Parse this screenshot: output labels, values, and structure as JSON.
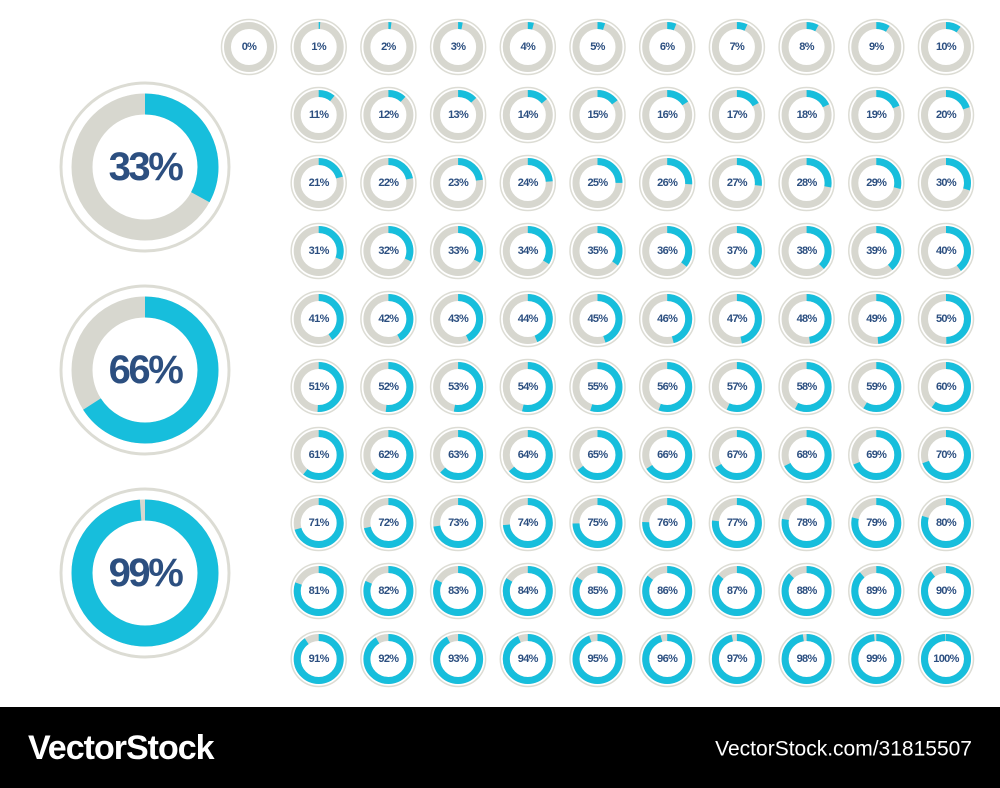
{
  "arc_color": "#17bedc",
  "track_color": "#d7d7cf",
  "text_color": "#2c4f80",
  "big": [
    {
      "value": 33,
      "label": "33%"
    },
    {
      "value": 66,
      "label": "66%"
    },
    {
      "value": 99,
      "label": "99%"
    }
  ],
  "small": [
    {
      "value": 0,
      "label": "0%"
    },
    {
      "value": 1,
      "label": "1%"
    },
    {
      "value": 2,
      "label": "2%"
    },
    {
      "value": 3,
      "label": "3%"
    },
    {
      "value": 4,
      "label": "4%"
    },
    {
      "value": 5,
      "label": "5%"
    },
    {
      "value": 6,
      "label": "6%"
    },
    {
      "value": 7,
      "label": "7%"
    },
    {
      "value": 8,
      "label": "8%"
    },
    {
      "value": 9,
      "label": "9%"
    },
    {
      "value": 10,
      "label": "10%"
    },
    {
      "value": 11,
      "label": "11%"
    },
    {
      "value": 12,
      "label": "12%"
    },
    {
      "value": 13,
      "label": "13%"
    },
    {
      "value": 14,
      "label": "14%"
    },
    {
      "value": 15,
      "label": "15%"
    },
    {
      "value": 16,
      "label": "16%"
    },
    {
      "value": 17,
      "label": "17%"
    },
    {
      "value": 18,
      "label": "18%"
    },
    {
      "value": 19,
      "label": "19%"
    },
    {
      "value": 20,
      "label": "20%"
    },
    {
      "value": 21,
      "label": "21%"
    },
    {
      "value": 22,
      "label": "22%"
    },
    {
      "value": 23,
      "label": "23%"
    },
    {
      "value": 24,
      "label": "24%"
    },
    {
      "value": 25,
      "label": "25%"
    },
    {
      "value": 26,
      "label": "26%"
    },
    {
      "value": 27,
      "label": "27%"
    },
    {
      "value": 28,
      "label": "28%"
    },
    {
      "value": 29,
      "label": "29%"
    },
    {
      "value": 30,
      "label": "30%"
    },
    {
      "value": 31,
      "label": "31%"
    },
    {
      "value": 32,
      "label": "32%"
    },
    {
      "value": 33,
      "label": "33%"
    },
    {
      "value": 34,
      "label": "34%"
    },
    {
      "value": 35,
      "label": "35%"
    },
    {
      "value": 36,
      "label": "36%"
    },
    {
      "value": 37,
      "label": "37%"
    },
    {
      "value": 38,
      "label": "38%"
    },
    {
      "value": 39,
      "label": "39%"
    },
    {
      "value": 40,
      "label": "40%"
    },
    {
      "value": 41,
      "label": "41%"
    },
    {
      "value": 42,
      "label": "42%"
    },
    {
      "value": 43,
      "label": "43%"
    },
    {
      "value": 44,
      "label": "44%"
    },
    {
      "value": 45,
      "label": "45%"
    },
    {
      "value": 46,
      "label": "46%"
    },
    {
      "value": 47,
      "label": "47%"
    },
    {
      "value": 48,
      "label": "48%"
    },
    {
      "value": 49,
      "label": "49%"
    },
    {
      "value": 50,
      "label": "50%"
    },
    {
      "value": 51,
      "label": "51%"
    },
    {
      "value": 52,
      "label": "52%"
    },
    {
      "value": 53,
      "label": "53%"
    },
    {
      "value": 54,
      "label": "54%"
    },
    {
      "value": 55,
      "label": "55%"
    },
    {
      "value": 56,
      "label": "56%"
    },
    {
      "value": 57,
      "label": "57%"
    },
    {
      "value": 58,
      "label": "58%"
    },
    {
      "value": 59,
      "label": "59%"
    },
    {
      "value": 60,
      "label": "60%"
    },
    {
      "value": 61,
      "label": "61%"
    },
    {
      "value": 62,
      "label": "62%"
    },
    {
      "value": 63,
      "label": "63%"
    },
    {
      "value": 64,
      "label": "64%"
    },
    {
      "value": 65,
      "label": "65%"
    },
    {
      "value": 66,
      "label": "66%"
    },
    {
      "value": 67,
      "label": "67%"
    },
    {
      "value": 68,
      "label": "68%"
    },
    {
      "value": 69,
      "label": "69%"
    },
    {
      "value": 70,
      "label": "70%"
    },
    {
      "value": 71,
      "label": "71%"
    },
    {
      "value": 72,
      "label": "72%"
    },
    {
      "value": 73,
      "label": "73%"
    },
    {
      "value": 74,
      "label": "74%"
    },
    {
      "value": 75,
      "label": "75%"
    },
    {
      "value": 76,
      "label": "76%"
    },
    {
      "value": 77,
      "label": "77%"
    },
    {
      "value": 78,
      "label": "78%"
    },
    {
      "value": 79,
      "label": "79%"
    },
    {
      "value": 80,
      "label": "80%"
    },
    {
      "value": 81,
      "label": "81%"
    },
    {
      "value": 82,
      "label": "82%"
    },
    {
      "value": 83,
      "label": "83%"
    },
    {
      "value": 84,
      "label": "84%"
    },
    {
      "value": 85,
      "label": "85%"
    },
    {
      "value": 86,
      "label": "86%"
    },
    {
      "value": 87,
      "label": "87%"
    },
    {
      "value": 88,
      "label": "88%"
    },
    {
      "value": 89,
      "label": "89%"
    },
    {
      "value": 90,
      "label": "90%"
    },
    {
      "value": 91,
      "label": "91%"
    },
    {
      "value": 92,
      "label": "92%"
    },
    {
      "value": 93,
      "label": "93%"
    },
    {
      "value": 94,
      "label": "94%"
    },
    {
      "value": 95,
      "label": "95%"
    },
    {
      "value": 96,
      "label": "96%"
    },
    {
      "value": 97,
      "label": "97%"
    },
    {
      "value": 98,
      "label": "98%"
    },
    {
      "value": 99,
      "label": "99%"
    },
    {
      "value": 100,
      "label": "100%"
    }
  ],
  "footer": {
    "brand": "VectorStock",
    "id": "VectorStock.com/31815507"
  }
}
